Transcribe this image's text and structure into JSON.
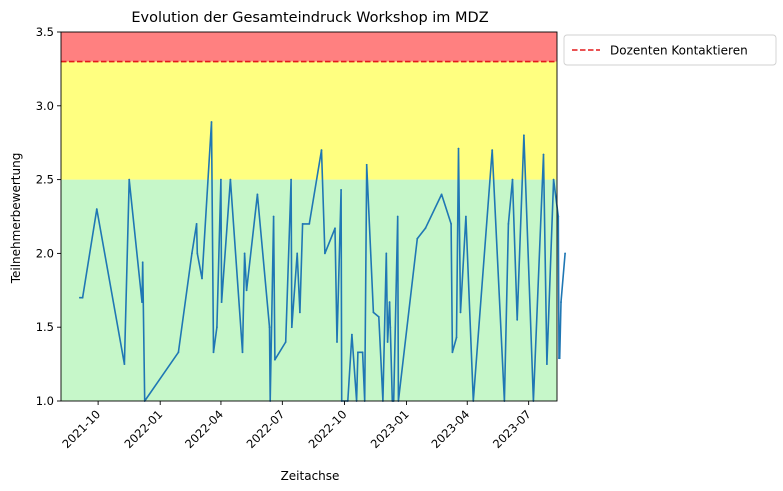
{
  "chart_data": {
    "type": "line",
    "title": "Evolution der  Gesamteindruck Workshop im MDZ",
    "xlabel": "Zeitachse",
    "ylabel": "Teilnehmerbewertung",
    "xlim": [
      "2021-08-07",
      "2023-08-12"
    ],
    "ylim": [
      1.0,
      3.5
    ],
    "x_ticks": [
      "2021-10-01",
      "2022-01-01",
      "2022-04-01",
      "2022-07-01",
      "2022-10-01",
      "2023-01-01",
      "2023-04-01",
      "2023-07-01"
    ],
    "x_tick_labels": [
      "2021-10",
      "2022-01",
      "2022-04",
      "2022-07",
      "2022-10",
      "2023-01",
      "2023-04",
      "2023-07"
    ],
    "y_ticks": [
      "1.0",
      "1.5",
      "2.0",
      "2.5",
      "3.0",
      "3.5"
    ],
    "bands": [
      {
        "from": 1.0,
        "to": 2.5,
        "color": "#c6f7c9"
      },
      {
        "from": 2.5,
        "to": 3.3,
        "color": "#ffff80"
      },
      {
        "from": 3.3,
        "to": 3.5,
        "color": "#ff8080"
      }
    ],
    "threshold": {
      "value": 3.3,
      "name": "Dozenten Kontaktieren",
      "color": "#e31a1c",
      "style": "dashed"
    },
    "legend_position": "outside-right-top",
    "grid": false,
    "series": [
      {
        "color": "#1f77b4",
        "points": [
          [
            "2021-09-04",
            1.7
          ],
          [
            "2021-09-08",
            1.7
          ],
          [
            "2021-09-29",
            2.3
          ],
          [
            "2021-11-09",
            1.25
          ],
          [
            "2021-11-16",
            2.5
          ],
          [
            "2021-12-05",
            1.67
          ],
          [
            "2021-12-06",
            1.94
          ],
          [
            "2021-12-09",
            1.0
          ],
          [
            "2022-01-28",
            1.33
          ],
          [
            "2022-02-17",
            2.0
          ],
          [
            "2022-02-24",
            2.2
          ],
          [
            "2022-02-25",
            2.0
          ],
          [
            "2022-03-04",
            1.83
          ],
          [
            "2022-03-18",
            2.89
          ],
          [
            "2022-03-21",
            1.33
          ],
          [
            "2022-03-26",
            1.5
          ],
          [
            "2022-04-01",
            2.5
          ],
          [
            "2022-04-02",
            1.67
          ],
          [
            "2022-04-15",
            2.5
          ],
          [
            "2022-05-03",
            1.33
          ],
          [
            "2022-05-06",
            2.0
          ],
          [
            "2022-05-09",
            1.75
          ],
          [
            "2022-05-25",
            2.4
          ],
          [
            "2022-06-12",
            1.5
          ],
          [
            "2022-06-13",
            1.0
          ],
          [
            "2022-06-18",
            2.25
          ],
          [
            "2022-06-20",
            1.28
          ],
          [
            "2022-07-06",
            1.4
          ],
          [
            "2022-07-14",
            2.5
          ],
          [
            "2022-07-15",
            1.5
          ],
          [
            "2022-07-23",
            2.0
          ],
          [
            "2022-07-27",
            1.6
          ],
          [
            "2022-07-31",
            2.2
          ],
          [
            "2022-08-10",
            2.2
          ],
          [
            "2022-08-28",
            2.7
          ],
          [
            "2022-09-02",
            2.0
          ],
          [
            "2022-09-17",
            2.17
          ],
          [
            "2022-09-20",
            1.4
          ],
          [
            "2022-09-26",
            2.43
          ],
          [
            "2022-09-27",
            1.0
          ],
          [
            "2022-10-06",
            1.0
          ],
          [
            "2022-10-12",
            1.45
          ],
          [
            "2022-10-19",
            1.0
          ],
          [
            "2022-10-21",
            1.33
          ],
          [
            "2022-10-28",
            1.33
          ],
          [
            "2022-10-31",
            1.0
          ],
          [
            "2022-11-03",
            2.6
          ],
          [
            "2022-11-13",
            1.6
          ],
          [
            "2022-11-21",
            1.57
          ],
          [
            "2022-11-27",
            1.0
          ],
          [
            "2022-12-02",
            2.0
          ],
          [
            "2022-12-04",
            1.4
          ],
          [
            "2022-12-07",
            1.67
          ],
          [
            "2022-12-08",
            1.5
          ],
          [
            "2022-12-11",
            1.0
          ],
          [
            "2022-12-13",
            1.0
          ],
          [
            "2022-12-19",
            2.25
          ],
          [
            "2022-12-20",
            1.0
          ],
          [
            "2023-01-17",
            2.1
          ],
          [
            "2023-01-29",
            2.17
          ],
          [
            "2023-02-22",
            2.4
          ],
          [
            "2023-03-08",
            2.2
          ],
          [
            "2023-03-10",
            1.33
          ],
          [
            "2023-03-16",
            1.43
          ],
          [
            "2023-03-19",
            2.71
          ],
          [
            "2023-03-22",
            1.6
          ],
          [
            "2023-03-30",
            2.25
          ],
          [
            "2023-04-10",
            1.0
          ],
          [
            "2023-05-08",
            2.7
          ],
          [
            "2023-05-26",
            1.0
          ],
          [
            "2023-06-01",
            2.2
          ],
          [
            "2023-06-07",
            2.5
          ],
          [
            "2023-06-14",
            1.55
          ],
          [
            "2023-06-24",
            2.8
          ],
          [
            "2023-07-08",
            1.0
          ],
          [
            "2023-07-23",
            2.67
          ],
          [
            "2023-07-28",
            1.25
          ],
          [
            "2023-08-07",
            2.5
          ],
          [
            "2023-08-14",
            2.25
          ],
          [
            "2023-08-15",
            1.29
          ],
          [
            "2023-08-16",
            1.29
          ],
          [
            "2023-08-18",
            1.67
          ],
          [
            "2023-08-24",
            2.0
          ]
        ]
      }
    ]
  }
}
